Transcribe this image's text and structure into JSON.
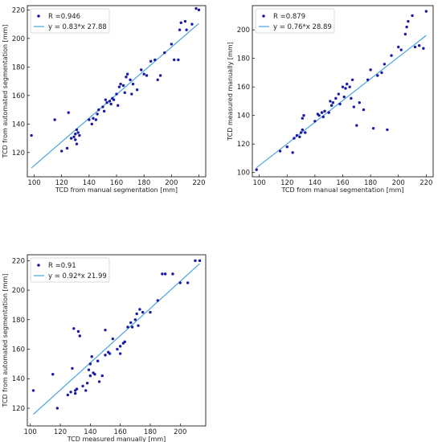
{
  "chart_data": [
    {
      "type": "scatter",
      "xlabel": "TCD from manual segmentation [mm]",
      "ylabel": "TCD from automated segmentation [mm]",
      "xlim": [
        95,
        225
      ],
      "ylim": [
        103,
        223
      ],
      "xticks": [
        100,
        120,
        140,
        160,
        180,
        200,
        220
      ],
      "yticks": [
        120,
        140,
        160,
        180,
        200,
        220
      ],
      "legend_position": "top-left",
      "colors": {
        "points": "#1a1aa8",
        "fit": "#4aa3df"
      },
      "series": [
        {
          "name": "R =0.946",
          "kind": "points",
          "x": [
            98,
            115,
            120,
            124,
            125,
            127,
            129,
            130,
            130,
            131,
            131,
            132,
            133,
            140,
            142,
            143,
            145,
            146,
            147,
            150,
            151,
            152,
            153,
            155,
            156,
            157,
            158,
            160,
            161,
            162,
            163,
            165,
            166,
            167,
            168,
            170,
            171,
            172,
            175,
            178,
            180,
            182,
            185,
            188,
            190,
            192,
            195,
            200,
            202,
            205,
            206,
            207,
            210,
            211,
            215,
            218,
            220
          ],
          "y": [
            132,
            143,
            121,
            123,
            148,
            130,
            131,
            129,
            133,
            136,
            126,
            134,
            132,
            143,
            140,
            144,
            143,
            147,
            150,
            152,
            149,
            157,
            155,
            156,
            154,
            158,
            157,
            161,
            153,
            166,
            168,
            167,
            162,
            173,
            175,
            171,
            161,
            168,
            164,
            178,
            175,
            174,
            184,
            185,
            171,
            174,
            190,
            196,
            185,
            185,
            206,
            211,
            212,
            206,
            210,
            221,
            220
          ]
        },
        {
          "name": "y = 0.83*x 27.88",
          "kind": "fit",
          "slope": 0.83,
          "intercept": 27.88,
          "x_range": [
            98,
            220
          ]
        }
      ]
    },
    {
      "type": "scatter",
      "xlabel": "TCD from manual segmentation [mm]",
      "ylabel": "TCD measured manually [mm]",
      "xlim": [
        95,
        225
      ],
      "ylim": [
        97,
        217
      ],
      "xticks": [
        100,
        120,
        140,
        160,
        180,
        200,
        220
      ],
      "yticks": [
        100,
        120,
        140,
        160,
        180,
        200
      ],
      "legend_position": "top-left",
      "colors": {
        "points": "#1a1aa8",
        "fit": "#4aa3df"
      },
      "series": [
        {
          "name": "R =0.879",
          "kind": "points",
          "x": [
            98,
            115,
            120,
            124,
            125,
            127,
            129,
            130,
            131,
            131,
            132,
            133,
            140,
            142,
            143,
            145,
            146,
            147,
            150,
            151,
            152,
            153,
            155,
            157,
            158,
            160,
            161,
            162,
            163,
            165,
            166,
            167,
            168,
            170,
            172,
            175,
            178,
            180,
            182,
            185,
            188,
            190,
            192,
            195,
            200,
            202,
            205,
            206,
            207,
            210,
            212,
            215,
            218,
            220
          ],
          "y": [
            102,
            115,
            118,
            114,
            124,
            126,
            125,
            128,
            130,
            138,
            140,
            128,
            136,
            141,
            140,
            142,
            139,
            143,
            142,
            150,
            147,
            149,
            152,
            155,
            148,
            160,
            153,
            159,
            162,
            160,
            152,
            165,
            146,
            133,
            149,
            144,
            165,
            172,
            131,
            168,
            170,
            176,
            130,
            182,
            188,
            186,
            197,
            202,
            206,
            210,
            188,
            189,
            187,
            213
          ]
        },
        {
          "name": "y = 0.76*x 28.89",
          "kind": "fit",
          "slope": 0.76,
          "intercept": 28.89,
          "x_range": [
            98,
            220
          ]
        }
      ]
    },
    {
      "type": "scatter",
      "xlabel": "TCD measured manually [mm]",
      "ylabel": "TCD from automated segmentation [mm]",
      "xlim": [
        98,
        217
      ],
      "ylim": [
        108,
        224
      ],
      "xticks": [
        100,
        120,
        140,
        160,
        180,
        200
      ],
      "yticks": [
        120,
        140,
        160,
        180,
        200,
        220
      ],
      "legend_position": "top-left",
      "colors": {
        "points": "#1a1aa8",
        "fit": "#4aa3df"
      },
      "series": [
        {
          "name": "R =0.91",
          "kind": "points",
          "x": [
            102,
            115,
            118,
            125,
            127,
            128,
            129,
            130,
            130,
            131,
            132,
            133,
            135,
            137,
            138,
            139,
            140,
            140,
            141,
            142,
            143,
            145,
            146,
            148,
            150,
            150,
            152,
            153,
            155,
            158,
            160,
            160,
            162,
            163,
            165,
            167,
            168,
            170,
            171,
            172,
            173,
            175,
            180,
            185,
            188,
            190,
            195,
            200,
            205,
            210,
            213
          ],
          "y": [
            132,
            143,
            120,
            129,
            131,
            147,
            174,
            130,
            132,
            133,
            172,
            169,
            135,
            132,
            137,
            146,
            142,
            150,
            155,
            144,
            143,
            152,
            138,
            142,
            173,
            156,
            158,
            157,
            167,
            160,
            157,
            162,
            164,
            165,
            175,
            178,
            175,
            180,
            184,
            176,
            187,
            185,
            185,
            193,
            211,
            211,
            211,
            205,
            205,
            220,
            220
          ]
        },
        {
          "name": "y = 0.92*x 21.99",
          "kind": "fit",
          "slope": 0.92,
          "intercept": 21.99,
          "x_range": [
            102,
            213
          ]
        }
      ]
    }
  ]
}
